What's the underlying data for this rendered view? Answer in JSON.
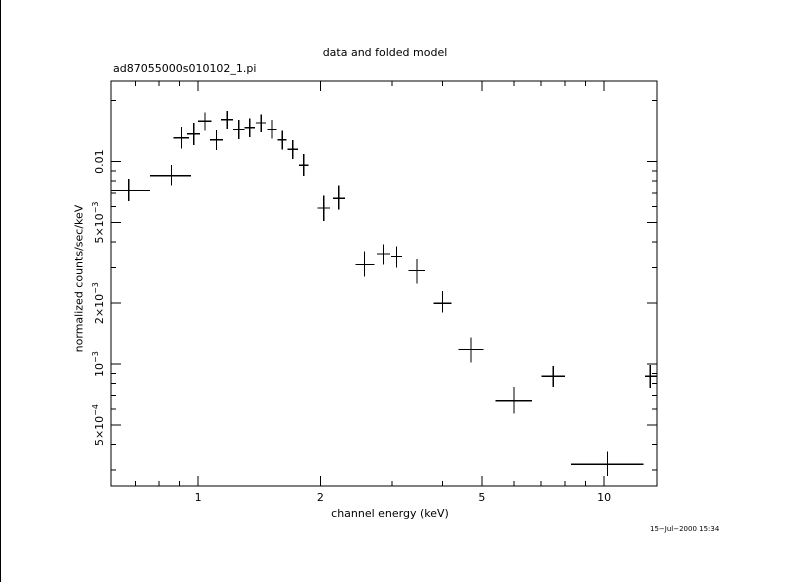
{
  "chart_data": {
    "type": "scatter",
    "title": "data and folded model",
    "subtitle": "ad87055000s010102_1.pi",
    "xlabel": "channel energy (keV)",
    "ylabel": "normalized counts/sec/keV",
    "xscale": "log",
    "yscale": "log",
    "xlim": [
      0.61,
      13.5
    ],
    "ylim": [
      0.00025,
      0.025
    ],
    "grid": false,
    "legend": "none",
    "color": "#000000",
    "x_ticks": [
      {
        "value": 1,
        "label": "1"
      },
      {
        "value": 2,
        "label": "2"
      },
      {
        "value": 5,
        "label": "5"
      },
      {
        "value": 10,
        "label": "10"
      }
    ],
    "y_ticks": [
      {
        "value": 0.01,
        "mant": "0.01",
        "exp": ""
      },
      {
        "value": 0.005,
        "mant": "5×10",
        "exp": "−3"
      },
      {
        "value": 0.002,
        "mant": "2×10",
        "exp": "−3"
      },
      {
        "value": 0.001,
        "mant": "10",
        "exp": "−3"
      },
      {
        "value": 0.0005,
        "mant": "5×10",
        "exp": "−4"
      }
    ],
    "points": [
      {
        "x": 0.675,
        "y": 0.0072,
        "xlo": 0.61,
        "xhi": 0.76,
        "ylo": 0.0064,
        "yhi": 0.0082
      },
      {
        "x": 0.86,
        "y": 0.0085,
        "xlo": 0.76,
        "xhi": 0.96,
        "ylo": 0.0076,
        "yhi": 0.0096
      },
      {
        "x": 0.91,
        "y": 0.0131,
        "xlo": 0.87,
        "xhi": 0.95,
        "ylo": 0.0116,
        "yhi": 0.0148
      },
      {
        "x": 0.975,
        "y": 0.0137,
        "xlo": 0.94,
        "xhi": 1.01,
        "ylo": 0.0121,
        "yhi": 0.0155
      },
      {
        "x": 1.04,
        "y": 0.0158,
        "xlo": 1.0,
        "xhi": 1.08,
        "ylo": 0.0142,
        "yhi": 0.0175
      },
      {
        "x": 1.11,
        "y": 0.0128,
        "xlo": 1.07,
        "xhi": 1.15,
        "ylo": 0.0114,
        "yhi": 0.0143
      },
      {
        "x": 1.18,
        "y": 0.0161,
        "xlo": 1.14,
        "xhi": 1.22,
        "ylo": 0.0145,
        "yhi": 0.0178
      },
      {
        "x": 1.26,
        "y": 0.0144,
        "xlo": 1.22,
        "xhi": 1.3,
        "ylo": 0.0129,
        "yhi": 0.016
      },
      {
        "x": 1.34,
        "y": 0.0147,
        "xlo": 1.3,
        "xhi": 1.38,
        "ylo": 0.0132,
        "yhi": 0.0163
      },
      {
        "x": 1.43,
        "y": 0.0155,
        "xlo": 1.39,
        "xhi": 1.47,
        "ylo": 0.014,
        "yhi": 0.0171
      },
      {
        "x": 1.52,
        "y": 0.0144,
        "xlo": 1.48,
        "xhi": 1.56,
        "ylo": 0.013,
        "yhi": 0.016
      },
      {
        "x": 1.61,
        "y": 0.0128,
        "xlo": 1.57,
        "xhi": 1.65,
        "ylo": 0.0115,
        "yhi": 0.0142
      },
      {
        "x": 1.71,
        "y": 0.0115,
        "xlo": 1.66,
        "xhi": 1.76,
        "ylo": 0.0103,
        "yhi": 0.0128
      },
      {
        "x": 1.82,
        "y": 0.0096,
        "xlo": 1.77,
        "xhi": 1.87,
        "ylo": 0.0085,
        "yhi": 0.0109
      },
      {
        "x": 2.04,
        "y": 0.0059,
        "xlo": 1.97,
        "xhi": 2.11,
        "ylo": 0.0051,
        "yhi": 0.0068
      },
      {
        "x": 2.22,
        "y": 0.0066,
        "xlo": 2.15,
        "xhi": 2.3,
        "ylo": 0.0058,
        "yhi": 0.0076
      },
      {
        "x": 2.57,
        "y": 0.0031,
        "xlo": 2.44,
        "xhi": 2.72,
        "ylo": 0.0027,
        "yhi": 0.0036
      },
      {
        "x": 2.86,
        "y": 0.0035,
        "xlo": 2.76,
        "xhi": 2.97,
        "ylo": 0.0031,
        "yhi": 0.0039
      },
      {
        "x": 3.08,
        "y": 0.0034,
        "xlo": 2.99,
        "xhi": 3.18,
        "ylo": 0.003,
        "yhi": 0.0038
      },
      {
        "x": 3.46,
        "y": 0.0029,
        "xlo": 3.3,
        "xhi": 3.62,
        "ylo": 0.0025,
        "yhi": 0.0033
      },
      {
        "x": 4.0,
        "y": 0.002,
        "xlo": 3.8,
        "xhi": 4.21,
        "ylo": 0.0018,
        "yhi": 0.0023
      },
      {
        "x": 4.7,
        "y": 0.00118,
        "xlo": 4.38,
        "xhi": 5.05,
        "ylo": 0.00102,
        "yhi": 0.00135
      },
      {
        "x": 6.0,
        "y": 0.00066,
        "xlo": 5.4,
        "xhi": 6.65,
        "ylo": 0.00057,
        "yhi": 0.00077
      },
      {
        "x": 7.5,
        "y": 0.00087,
        "xlo": 7.02,
        "xhi": 8.02,
        "ylo": 0.00077,
        "yhi": 0.00098
      },
      {
        "x": 10.2,
        "y": 0.00032,
        "xlo": 8.3,
        "xhi": 12.5,
        "ylo": 0.00028,
        "yhi": 0.00037
      },
      {
        "x": 13.0,
        "y": 0.00087,
        "xlo": 12.6,
        "xhi": 13.5,
        "ylo": 0.00076,
        "yhi": 0.00099
      }
    ]
  },
  "footer": {
    "timestamp": "15−Jul−2000 15:34"
  }
}
